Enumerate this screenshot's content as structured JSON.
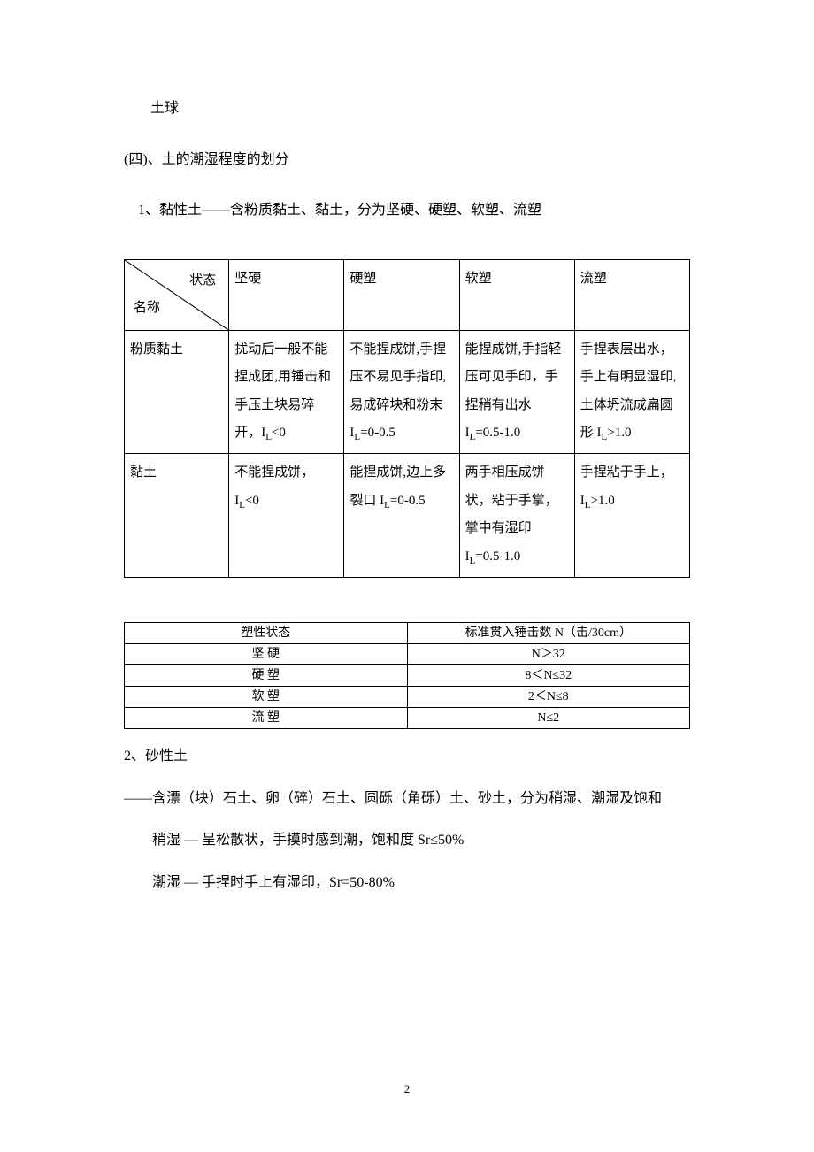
{
  "preText": "土球",
  "sectionHeading": "(四)、土的潮湿程度的划分",
  "item1": "1、黏性土——含粉质黏土、黏土，分为坚硬、硬塑、软塑、流塑",
  "table1": {
    "diagTop": "状态",
    "diagBottom": "名称",
    "headers": [
      "坚硬",
      "硬塑",
      "软塑",
      "流塑"
    ],
    "rows": [
      {
        "name": "粉质黏土",
        "cells": [
          "扰动后一般不能捏成团,用锤击和手压土块易碎开，I<sub>L</sub><0",
          "不能捏成饼,手捏压不易见手指印,易成碎块和粉末 I<sub>L</sub>=0-0.5",
          "能捏成饼,手指轻压可见手印，手捏稍有出水 I<sub>L</sub>=0.5-1.0",
          "手捏表层出水，手上有明显湿印,土体坍流成扁圆形 I<sub>L</sub>>1.0"
        ]
      },
      {
        "name": "黏土",
        "cells": [
          "不能捏成饼，I<sub>L</sub><0",
          "能捏成饼,边上多裂口 I<sub>L</sub>=0-0.5",
          "两手相压成饼状，粘于手掌，掌中有湿印 I<sub>L</sub>=0.5-1.0",
          "手捏粘于手上，I<sub>L</sub>>1.0"
        ]
      }
    ]
  },
  "table2": {
    "headers": [
      "塑性状态",
      "标准贯入锤击数 N（击/30cm）"
    ],
    "rows": [
      [
        "坚 硬",
        "N＞32"
      ],
      [
        "硬 塑",
        "8＜N≤32"
      ],
      [
        "软 塑",
        "2＜N≤8"
      ],
      [
        "流 塑",
        "N≤2"
      ]
    ]
  },
  "item2": "2、砂性土",
  "item2b": "——含漂（块）石土、卵（碎）石土、圆砾（角砾）土、砂土，分为稍湿、潮湿及饱和",
  "sub1": "稍湿 — 呈松散状，手摸时感到潮，饱和度 Sr≤50%",
  "sub2": "潮湿 — 手捏时手上有湿印，Sr=50-80%",
  "pageNum": "2"
}
